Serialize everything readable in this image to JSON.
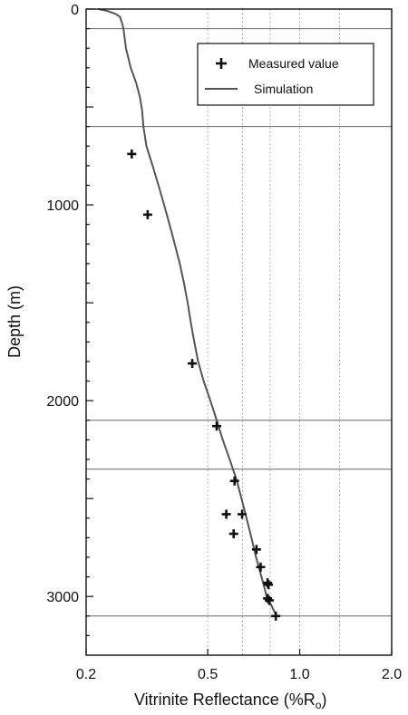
{
  "chart_data": {
    "type": "scatter",
    "title": "",
    "xlabel": "Vitrinite Reflectance (%R",
    "xlabel_subscript": "o",
    "xlabel_suffix": ")",
    "ylabel": "Depth (m)",
    "x_scale": "log",
    "xlim": [
      0.2,
      2.0
    ],
    "ylim": [
      0,
      3300
    ],
    "y_inverted": true,
    "x_tick_labels": [
      "0.2",
      "0.5",
      "1.0",
      "2.0"
    ],
    "x_ticks": [
      0.2,
      0.5,
      1.0,
      2.0
    ],
    "y_tick_labels": [
      "0",
      "1000",
      "2000",
      "3000"
    ],
    "y_ticks": [
      0,
      1000,
      2000,
      3000
    ],
    "x_gridlines_dotted": [
      0.5,
      0.65,
      0.8,
      1.0,
      1.35
    ],
    "horizontal_lines": [
      100,
      600,
      2100,
      2350,
      3100
    ],
    "legend": {
      "position": "top-right",
      "entries": [
        "Measured value",
        "Simulation"
      ]
    },
    "series": [
      {
        "name": "Measured value",
        "kind": "points",
        "points": [
          [
            0.282,
            740
          ],
          [
            0.318,
            1050
          ],
          [
            0.445,
            1810
          ],
          [
            0.535,
            2130
          ],
          [
            0.612,
            2410
          ],
          [
            0.575,
            2580
          ],
          [
            0.648,
            2580
          ],
          [
            0.608,
            2680
          ],
          [
            0.722,
            2760
          ],
          [
            0.745,
            2850
          ],
          [
            0.785,
            2930
          ],
          [
            0.79,
            2940
          ],
          [
            0.785,
            3010
          ],
          [
            0.795,
            3020
          ],
          [
            0.835,
            3100
          ]
        ]
      },
      {
        "name": "Simulation",
        "kind": "line",
        "points": [
          [
            0.22,
            0
          ],
          [
            0.235,
            10
          ],
          [
            0.25,
            25
          ],
          [
            0.258,
            40
          ],
          [
            0.262,
            70
          ],
          [
            0.265,
            100
          ],
          [
            0.27,
            200
          ],
          [
            0.28,
            300
          ],
          [
            0.292,
            380
          ],
          [
            0.3,
            450
          ],
          [
            0.305,
            520
          ],
          [
            0.308,
            600
          ],
          [
            0.315,
            700
          ],
          [
            0.33,
            800
          ],
          [
            0.345,
            900
          ],
          [
            0.36,
            1000
          ],
          [
            0.375,
            1100
          ],
          [
            0.39,
            1200
          ],
          [
            0.405,
            1300
          ],
          [
            0.418,
            1400
          ],
          [
            0.43,
            1500
          ],
          [
            0.44,
            1600
          ],
          [
            0.452,
            1700
          ],
          [
            0.465,
            1800
          ],
          [
            0.485,
            1900
          ],
          [
            0.51,
            2000
          ],
          [
            0.535,
            2100
          ],
          [
            0.56,
            2200
          ],
          [
            0.59,
            2300
          ],
          [
            0.62,
            2400
          ],
          [
            0.645,
            2500
          ],
          [
            0.67,
            2600
          ],
          [
            0.695,
            2700
          ],
          [
            0.72,
            2800
          ],
          [
            0.75,
            2900
          ],
          [
            0.78,
            3000
          ],
          [
            0.81,
            3050
          ],
          [
            0.84,
            3100
          ]
        ]
      }
    ]
  }
}
